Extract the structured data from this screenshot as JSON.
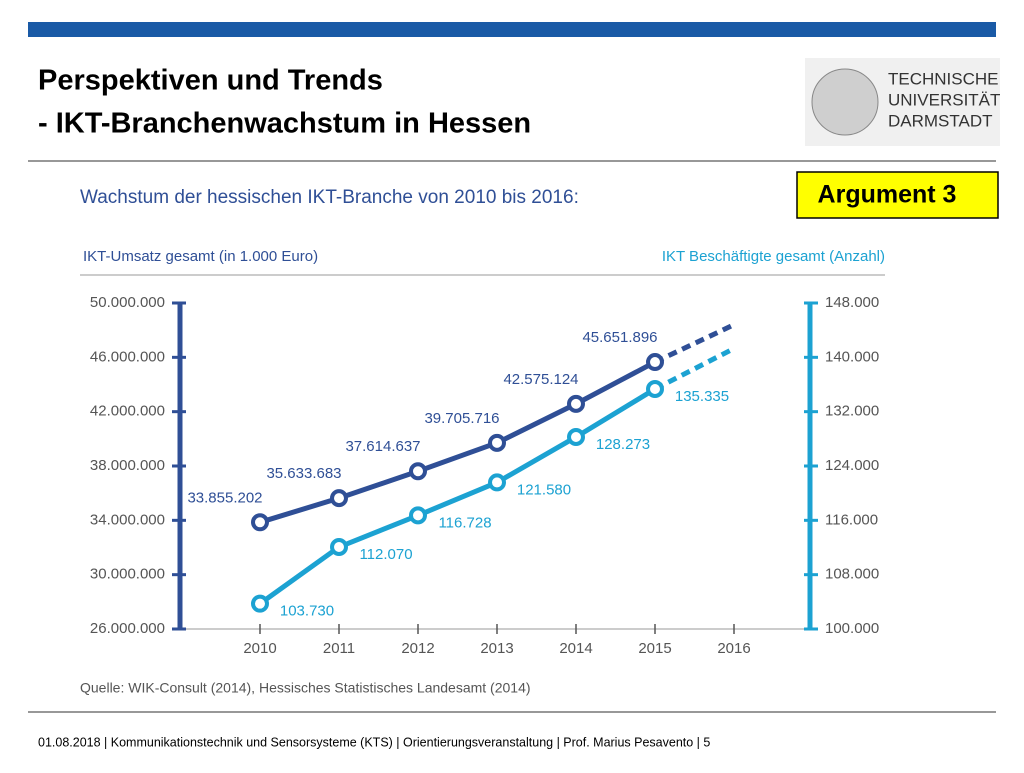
{
  "slide": {
    "title_line1": "Perspektiven und Trends",
    "title_line2": "- IKT-Branchenwachstum in Hessen",
    "logo": [
      "TECHNISCHE",
      "UNIVERSITÄT",
      "DARMSTADT"
    ],
    "badge": "Argument 3",
    "footer": "01.08.2018  |  Kommunikationstechnik und Sensorsysteme (KTS) | Orientierungsveranstaltung |  Prof. Marius Pesavento  |  5"
  },
  "chart_data": {
    "type": "line",
    "title": "Wachstum der hessischen IKT-Branche von 2010 bis 2016:",
    "y_label": "IKT-Umsatz gesamt (in 1.000 Euro)",
    "y2_label": "IKT Beschäftigte gesamt (Anzahl)",
    "source": "Quelle: WIK-Consult (2014), Hessisches Statistisches Landesamt (2014)",
    "categories": [
      "2010",
      "2011",
      "2012",
      "2013",
      "2014",
      "2015",
      "2016"
    ],
    "ylim": [
      26000000,
      50000000
    ],
    "yticks": [
      {
        "value": 26000000,
        "label": "26.000.000"
      },
      {
        "value": 30000000,
        "label": "30.000.000"
      },
      {
        "value": 34000000,
        "label": "34.000.000"
      },
      {
        "value": 38000000,
        "label": "38.000.000"
      },
      {
        "value": 42000000,
        "label": "42.000.000"
      },
      {
        "value": 46000000,
        "label": "46.000.000"
      },
      {
        "value": 50000000,
        "label": "50.000.000"
      }
    ],
    "y2lim": [
      100000,
      148000
    ],
    "y2ticks": [
      {
        "value": 100000,
        "label": "100.000"
      },
      {
        "value": 108000,
        "label": "108.000"
      },
      {
        "value": 116000,
        "label": "116.000"
      },
      {
        "value": 124000,
        "label": "124.000"
      },
      {
        "value": 132000,
        "label": "132.000"
      },
      {
        "value": 140000,
        "label": "140.000"
      },
      {
        "value": 148000,
        "label": "148.000"
      }
    ],
    "dashed_last": true,
    "series": [
      {
        "name": "IKT-Umsatz gesamt (in 1.000 Euro)",
        "color": "#2f4f96",
        "axis": "y",
        "values": [
          33855202,
          35633683,
          37614637,
          39705716,
          42575124,
          45651896,
          48400000
        ],
        "value_labels": [
          "33.855.202",
          "35.633.683",
          "37.614.637",
          "39.705.716",
          "42.575.124",
          "45.651.896",
          null
        ]
      },
      {
        "name": "IKT Beschäftigte gesamt (Anzahl)",
        "color": "#1ca2d2",
        "axis": "y2",
        "values": [
          103730,
          112070,
          116728,
          121580,
          128273,
          135335,
          141300
        ],
        "value_labels": [
          "103.730",
          "112.070",
          "116.728",
          "121.580",
          "128.273",
          "135.335",
          null
        ]
      }
    ]
  }
}
